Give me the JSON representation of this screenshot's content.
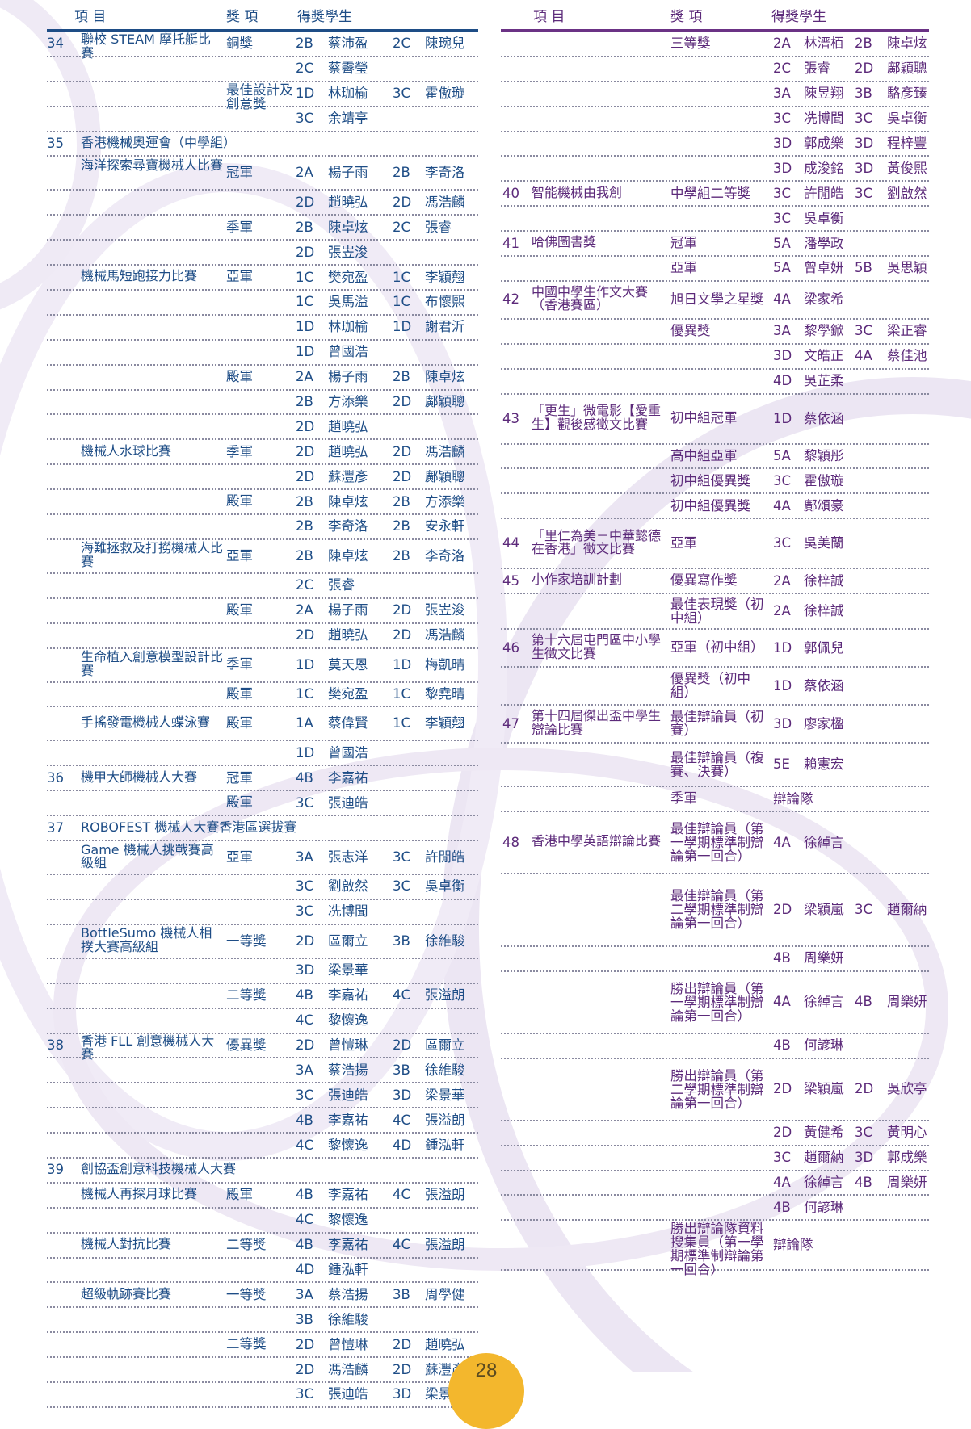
{
  "header": {
    "item": "項 目",
    "award": "獎 項",
    "students": "得獎學生"
  },
  "page_number": "28",
  "left_rows": [
    {
      "no": "34",
      "ev": "聯校 STEAM 摩托艇比賽",
      "aw": "銅獎",
      "c1": "2B",
      "n1": "蔡沛盈",
      "c2": "2C",
      "n2": "陳琬兒"
    },
    {
      "c1": "2C",
      "n1": "蔡霽瑩"
    },
    {
      "aw": "最佳設計及創意獎",
      "c1": "1D",
      "n1": "林珈榆",
      "c2": "3C",
      "n2": "霍傲璇"
    },
    {
      "c1": "3C",
      "n1": "余靖亭"
    },
    {
      "no": "35",
      "ev": "香港機械奧運會（中學組）"
    },
    {
      "ev": "海洋探索尋寶機械人比賽",
      "aw": "冠軍",
      "c1": "2A",
      "n1": "楊子雨",
      "c2": "2B",
      "n2": "李奇洛"
    },
    {
      "c1": "2D",
      "n1": "趙曉弘",
      "c2": "2D",
      "n2": "馮浩麟"
    },
    {
      "aw": "季軍",
      "c1": "2B",
      "n1": "陳卓炫",
      "c2": "2C",
      "n2": "張睿"
    },
    {
      "c1": "2D",
      "n1": "張岦浚"
    },
    {
      "ev": "機械馬短跑接力比賽",
      "aw": "亞軍",
      "c1": "1C",
      "n1": "樊宛盈",
      "c2": "1C",
      "n2": "李穎翹"
    },
    {
      "c1": "1C",
      "n1": "吳馬溢",
      "c2": "1C",
      "n2": "布懷熙"
    },
    {
      "c1": "1D",
      "n1": "林珈榆",
      "c2": "1D",
      "n2": "謝君沂"
    },
    {
      "c1": "1D",
      "n1": "曾國浩"
    },
    {
      "aw": "殿軍",
      "c1": "2A",
      "n1": "楊子雨",
      "c2": "2B",
      "n2": "陳卓炫"
    },
    {
      "c1": "2B",
      "n1": "方添樂",
      "c2": "2D",
      "n2": "鄺穎聰"
    },
    {
      "c1": "2D",
      "n1": "趙曉弘"
    },
    {
      "ev": "機械人水球比賽",
      "aw": "季軍",
      "c1": "2D",
      "n1": "趙曉弘",
      "c2": "2D",
      "n2": "馮浩麟"
    },
    {
      "c1": "2D",
      "n1": "蘇灃彥",
      "c2": "2D",
      "n2": "鄺穎聰"
    },
    {
      "aw": "殿軍",
      "c1": "2B",
      "n1": "陳卓炫",
      "c2": "2B",
      "n2": "方添樂"
    },
    {
      "c1": "2B",
      "n1": "李奇洛",
      "c2": "2B",
      "n2": "安永軒"
    },
    {
      "ev": "海難拯救及打撈機械人比賽",
      "aw": "亞軍",
      "c1": "2B",
      "n1": "陳卓炫",
      "c2": "2B",
      "n2": "李奇洛"
    },
    {
      "c1": "2C",
      "n1": "張睿"
    },
    {
      "aw": "殿軍",
      "c1": "2A",
      "n1": "楊子雨",
      "c2": "2D",
      "n2": "張岦浚"
    },
    {
      "c1": "2D",
      "n1": "趙曉弘",
      "c2": "2D",
      "n2": "馮浩麟"
    },
    {
      "ev": "生命植入創意模型設計比賽",
      "aw": "季軍",
      "c1": "1D",
      "n1": "莫天恩",
      "c2": "1D",
      "n2": "梅凱晴"
    },
    {
      "aw": "殿軍",
      "c1": "1C",
      "n1": "樊宛盈",
      "c2": "1C",
      "n2": "黎堯晴"
    },
    {
      "ev": "手搖發電機械人蝶泳賽",
      "aw": "殿軍",
      "c1": "1A",
      "n1": "蔡偉賢",
      "c2": "1C",
      "n2": "李穎翹"
    },
    {
      "c1": "1D",
      "n1": "曾國浩"
    },
    {
      "no": "36",
      "ev": "機甲大師機械人大賽",
      "aw": "冠軍",
      "c1": "4B",
      "n1": "李嘉祐"
    },
    {
      "aw": "殿軍",
      "c1": "3C",
      "n1": "張迪皓"
    },
    {
      "no": "37",
      "ev": "ROBOFEST 機械人大賽香港區選拔賽"
    },
    {
      "ev": "Game 機械人挑戰賽高級組",
      "aw": "亞軍",
      "c1": "3A",
      "n1": "張志洋",
      "c2": "3C",
      "n2": "許閒皓"
    },
    {
      "c1": "3C",
      "n1": "劉啟然",
      "c2": "3C",
      "n2": "吳卓衡"
    },
    {
      "c1": "3C",
      "n1": "冼博聞"
    },
    {
      "ev": "BottleSumo 機械人相撲大賽高級組",
      "aw": "一等獎",
      "c1": "2D",
      "n1": "區爾立",
      "c2": "3B",
      "n2": "徐維駿"
    },
    {
      "c1": "3D",
      "n1": "梁景華"
    },
    {
      "aw": "二等獎",
      "c1": "4B",
      "n1": "李嘉祐",
      "c2": "4C",
      "n2": "張溢朗"
    },
    {
      "c1": "4C",
      "n1": "黎懷逸"
    },
    {
      "no": "38",
      "ev": "香港 FLL 創意機械人大賽",
      "aw": "優異獎",
      "c1": "2D",
      "n1": "曾愷琳",
      "c2": "2D",
      "n2": "區爾立"
    },
    {
      "c1": "3A",
      "n1": "蔡浩揚",
      "c2": "3B",
      "n2": "徐維駿"
    },
    {
      "c1": "3C",
      "n1": "張迪皓",
      "c2": "3D",
      "n2": "梁景華"
    },
    {
      "c1": "4B",
      "n1": "李嘉祐",
      "c2": "4C",
      "n2": "張溢朗"
    },
    {
      "c1": "4C",
      "n1": "黎懷逸",
      "c2": "4D",
      "n2": "鍾泓軒"
    },
    {
      "no": "39",
      "ev": "創協盃創意科技機械人大賽"
    },
    {
      "ev": "機械人再探月球比賽",
      "aw": "殿軍",
      "c1": "4B",
      "n1": "李嘉祐",
      "c2": "4C",
      "n2": "張溢朗"
    },
    {
      "c1": "4C",
      "n1": "黎懷逸"
    },
    {
      "ev": "機械人對抗比賽",
      "aw": "二等獎",
      "c1": "4B",
      "n1": "李嘉祐",
      "c2": "4C",
      "n2": "張溢朗"
    },
    {
      "c1": "4D",
      "n1": "鍾泓軒"
    },
    {
      "ev": "超級軌跡賽比賽",
      "aw": "一等獎",
      "c1": "3A",
      "n1": "蔡浩揚",
      "c2": "3B",
      "n2": "周學健"
    },
    {
      "c1": "3B",
      "n1": "徐維駿"
    },
    {
      "aw": "二等獎",
      "c1": "2D",
      "n1": "曾愷琳",
      "c2": "2D",
      "n2": "趙曉弘"
    },
    {
      "c1": "2D",
      "n1": "馮浩麟",
      "c2": "2D",
      "n2": "蘇灃彥"
    },
    {
      "c1": "3C",
      "n1": "張迪皓",
      "c2": "3D",
      "n2": "梁景華"
    }
  ],
  "right_rows": [
    {
      "aw": "三等獎",
      "c1": "2A",
      "n1": "林溍栢",
      "c2": "2B",
      "n2": "陳卓炫"
    },
    {
      "c1": "2C",
      "n1": "張睿",
      "c2": "2D",
      "n2": "鄺穎聰"
    },
    {
      "c1": "3A",
      "n1": "陳昱翔",
      "c2": "3B",
      "n2": "駱彥臻"
    },
    {
      "c1": "3C",
      "n1": "冼博聞",
      "c2": "3C",
      "n2": "吳卓衡"
    },
    {
      "c1": "3D",
      "n1": "郭成樂",
      "c2": "3D",
      "n2": "程梓豐"
    },
    {
      "c1": "3D",
      "n1": "成浚銘",
      "c2": "3D",
      "n2": "黃俊熙"
    },
    {
      "no": "40",
      "ev": "智能機械由我創",
      "aw": "中學組二等獎",
      "c1": "3C",
      "n1": "許閒皓",
      "c2": "3C",
      "n2": "劉啟然"
    },
    {
      "c1": "3C",
      "n1": "吳卓衡"
    },
    {
      "no": "41",
      "ev": "哈佛圖書獎",
      "aw": "冠軍",
      "c1": "5A",
      "n1": "潘學政"
    },
    {
      "aw": "亞軍",
      "c1": "5A",
      "n1": "曾卓妍",
      "c2": "5B",
      "n2": "吳思穎"
    },
    {
      "no": "42",
      "ev": "中國中學生作文大賽（香港賽區）",
      "aw": "旭日文學之星獎",
      "c1": "4A",
      "n1": "梁家希"
    },
    {
      "aw": "優異獎",
      "c1": "3A",
      "n1": "黎學鍁",
      "c2": "3C",
      "n2": "梁正睿"
    },
    {
      "c1": "3D",
      "n1": "文皓正",
      "c2": "4A",
      "n2": "蔡佳池"
    },
    {
      "c1": "4D",
      "n1": "吳芷柔"
    },
    {
      "no": "43",
      "ev": "「更生」微電影【愛重生】觀後感徵文比賽",
      "aw": "初中組冠軍",
      "c1": "1D",
      "n1": "蔡依涵"
    },
    {
      "aw": "高中組亞軍",
      "c1": "5A",
      "n1": "黎穎彤"
    },
    {
      "aw": "初中組優異獎",
      "c1": "3C",
      "n1": "霍傲璇"
    },
    {
      "aw": "初中組優異獎",
      "c1": "4A",
      "n1": "鄺頌豪"
    },
    {
      "no": "44",
      "ev": "「里仁為美－中華懿德在香港」徵文比賽",
      "aw": "亞軍",
      "c1": "3C",
      "n1": "吳美蘭"
    },
    {
      "no": "45",
      "ev": "小作家培訓計劃",
      "aw": "優異寫作獎",
      "c1": "2A",
      "n1": "徐梓誠"
    },
    {
      "aw": "最佳表現獎（初中組）",
      "c1": "2A",
      "n1": "徐梓誠"
    },
    {
      "no": "46",
      "ev": "第十六屆屯門區中小學生徵文比賽",
      "aw": "亞軍（初中組）",
      "c1": "1D",
      "n1": "郭佩兒"
    },
    {
      "aw": "優異獎（初中組）",
      "c1": "1D",
      "n1": "蔡依涵"
    },
    {
      "no": "47",
      "ev": "第十四屆傑出盃中學生辯論比賽",
      "aw": "最佳辯論員（初賽）",
      "c1": "3D",
      "n1": "廖家楹"
    },
    {
      "aw": "最佳辯論員（複賽、決賽）",
      "c1": "5E",
      "n1": "賴憲宏"
    },
    {
      "aw": "季軍",
      "c1": "辯論隊"
    },
    {
      "no": "48",
      "ev": "香港中學英語辯論比賽",
      "aw": "最佳辯論員（第一學期標準制辯論第一回合）",
      "c1": "4A",
      "n1": "徐綽言"
    },
    {
      "aw": "最佳辯論員（第二學期標準制辯論第一回合）",
      "c1": "2D",
      "n1": "梁穎嵐",
      "c2": "3C",
      "n2": "趙爾納"
    },
    {
      "c1": "4B",
      "n1": "周樂妍"
    },
    {
      "aw": "勝出辯論員（第一學期標準制辯論第一回合）",
      "c1": "4A",
      "n1": "徐綽言",
      "c2": "4B",
      "n2": "周樂妍"
    },
    {
      "c1": "4B",
      "n1": "何諺琳"
    },
    {
      "aw": "勝出辯論員（第二學期標準制辯論第一回合）",
      "c1": "2D",
      "n1": "梁穎嵐",
      "c2": "2D",
      "n2": "吳欣亭"
    },
    {
      "c1": "2D",
      "n1": "黃健希",
      "c2": "3C",
      "n2": "黃明心"
    },
    {
      "c1": "3C",
      "n1": "趙爾納",
      "c2": "3D",
      "n2": "郭成樂"
    },
    {
      "c1": "4A",
      "n1": "徐綽言",
      "c2": "4B",
      "n2": "周樂妍"
    },
    {
      "c1": "4B",
      "n1": "何諺琳"
    },
    {
      "aw": "勝出辯論隊資料搜集員（第一學期標準制辯論第一回合）",
      "c1": "辯論隊"
    }
  ]
}
